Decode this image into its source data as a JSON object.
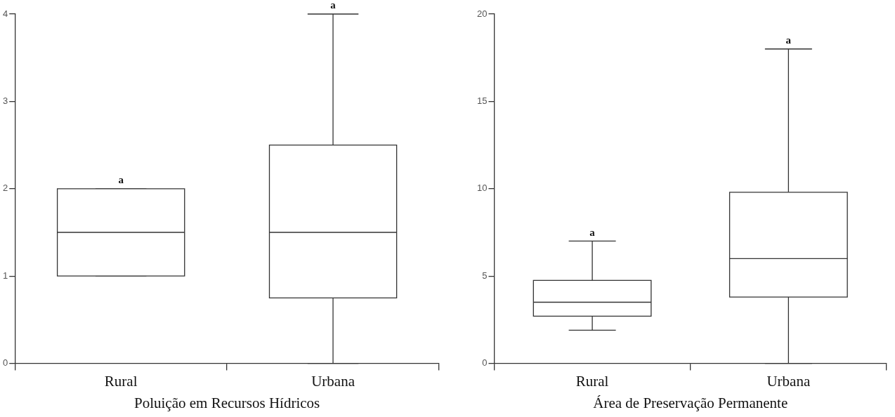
{
  "chart_data": [
    {
      "type": "box",
      "xlabel": "Poluição em Recursos Hídricos",
      "categories": [
        "Rural",
        "Urbana"
      ],
      "boxes": [
        {
          "low": 1,
          "q1": 1,
          "median": 1.5,
          "q3": 2,
          "high": 2
        },
        {
          "low": 0,
          "q1": 0.75,
          "median": 1.5,
          "q3": 2.5,
          "high": 4
        }
      ],
      "ylim": [
        0,
        4
      ],
      "yticks": [
        0,
        1,
        2,
        3,
        4
      ],
      "grid": false,
      "legend": false,
      "annotations": [
        {
          "text": "a",
          "x": "Rural",
          "y": 2
        },
        {
          "text": "a",
          "x": "Urbana",
          "y": 4
        }
      ]
    },
    {
      "type": "box",
      "xlabel": "Área de Preservação Permanente",
      "categories": [
        "Rural",
        "Urbana"
      ],
      "boxes": [
        {
          "low": 1.9,
          "q1": 2.7,
          "median": 3.5,
          "q3": 4.75,
          "high": 7
        },
        {
          "low": 0,
          "q1": 3.8,
          "median": 6,
          "q3": 9.8,
          "high": 18
        }
      ],
      "ylim": [
        0,
        20
      ],
      "yticks": [
        0,
        5,
        10,
        15,
        20
      ],
      "grid": false,
      "legend": false,
      "annotations": [
        {
          "text": "a",
          "x": "Rural",
          "y": 7
        },
        {
          "text": "a",
          "x": "Urbana",
          "y": 18
        }
      ]
    }
  ]
}
